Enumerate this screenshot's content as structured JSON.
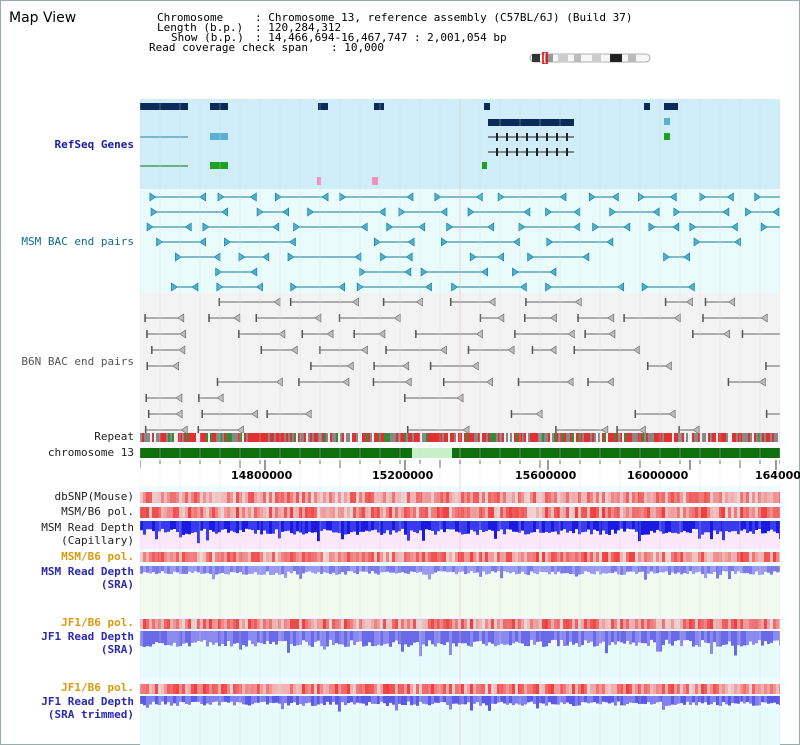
{
  "title": "Map View",
  "info": {
    "chromosome_label": "Chromosome",
    "chromosome_value": ": Chromosome 13, reference assembly (C57BL/6J) (Build 37)",
    "length_label": "Length (b.p.)",
    "length_value": ": 120,284,312",
    "show_label": "Show (b.p.)",
    "show_value": ": 14,466,694-16,467,747 : 2,001,054 bp",
    "coverage_label": "Read coverage check span",
    "coverage_value": ": 10,000"
  },
  "tracks": {
    "refseq": "RefSeq Genes",
    "msm_bac": "MSM BAC end pairs",
    "b6n_bac": "B6N BAC end pairs",
    "repeat": "Repeat",
    "chromosome": "chromosome 13",
    "dbsnp": "dbSNP(Mouse)",
    "msm_b6_pol_1": "MSM/B6 pol.",
    "msm_depth_cap_1": "MSM Read Depth",
    "msm_depth_cap_2": "(Capillary)",
    "msm_b6_pol_2": "MSM/B6 pol.",
    "msm_depth_sra_1": "MSM Read Depth",
    "msm_depth_sra_2": "(SRA)",
    "jf1_b6_pol_1": "JF1/B6 pol.",
    "jf1_depth_sra_1": "JF1 Read Depth",
    "jf1_depth_sra_2": "(SRA)",
    "jf1_b6_pol_2": "JF1/B6 pol.",
    "jf1_depth_trim_1": "JF1 Read Depth",
    "jf1_depth_trim_2": "(SRA trimmed)"
  },
  "axis": {
    "ticks": [
      "14800000",
      "15200000",
      "15600000",
      "16000000",
      "164000"
    ]
  },
  "colors": {
    "refseq_band": "#cfeef9",
    "msm_band": "#e9fbfb",
    "b6n_band": "#f3f3f3",
    "chromosome_bar": "#107010",
    "depth_dark": "#2020e0",
    "depth_light": "#8080f0",
    "polymorphism": "#e04040"
  }
}
